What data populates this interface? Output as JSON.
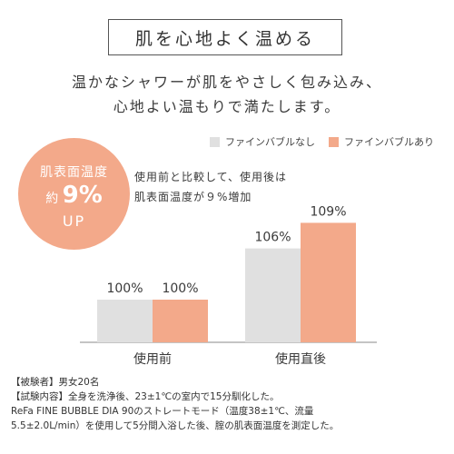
{
  "title": "肌を心地よく温める",
  "lead": [
    "温かなシャワーが肌をやさしく包み込み、",
    "心地よい温もりで満たします。"
  ],
  "badge": {
    "line1": "肌表面温度",
    "prefix": "約",
    "value": "9",
    "unit": "%",
    "line3": "UP"
  },
  "description": [
    "使用前と比較して、使用後は",
    "肌表面温度が９%増加"
  ],
  "colors": {
    "without": "#e0e0e0",
    "with": "#f3a98a",
    "axis": "#8a8a8a"
  },
  "chart_data": {
    "type": "bar",
    "categories": [
      "使用前",
      "使用直後"
    ],
    "series": [
      {
        "name": "ファインバブルなし",
        "values": [
          100,
          106
        ],
        "labels": [
          "100%",
          "106%"
        ]
      },
      {
        "name": "ファインバブルあり",
        "values": [
          100,
          109
        ],
        "labels": [
          "100%",
          "109%"
        ]
      }
    ]
  },
  "notes": [
    "【被験者】男女20名",
    "【試験内容】全身を洗浄後、23±1℃の室内で15分馴化した。",
    "ReFa FINE BUBBLE DIA 90のストレートモード（温度38±1℃、流量",
    "5.5±2.0L/min）を使用して5分間入浴した後、腟の肌表面温度を測定した。"
  ]
}
